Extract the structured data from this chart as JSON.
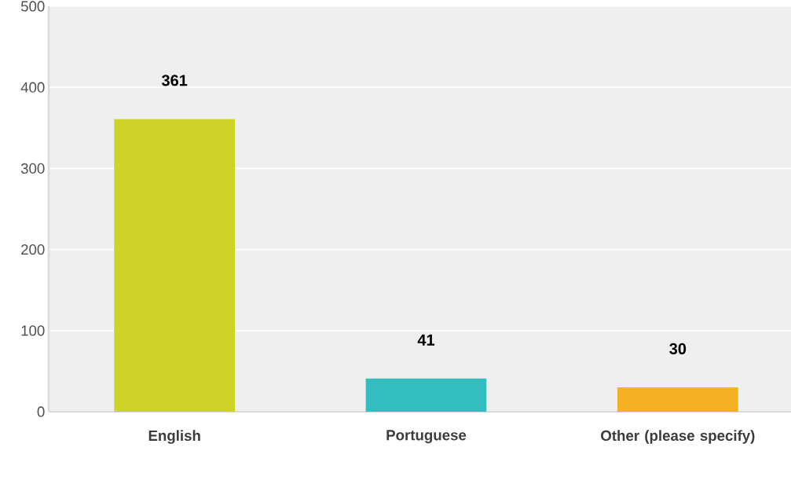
{
  "chart_data": {
    "type": "bar",
    "categories": [
      "English",
      "Portuguese",
      "Other (please specify)"
    ],
    "values": [
      361,
      41,
      30
    ],
    "colors": [
      "#ced329",
      "#33bdbe",
      "#f6b023"
    ],
    "ylim": [
      0,
      500
    ],
    "yticks": [
      0,
      100,
      200,
      300,
      400,
      500
    ],
    "grid": "y",
    "data_labels": true
  }
}
